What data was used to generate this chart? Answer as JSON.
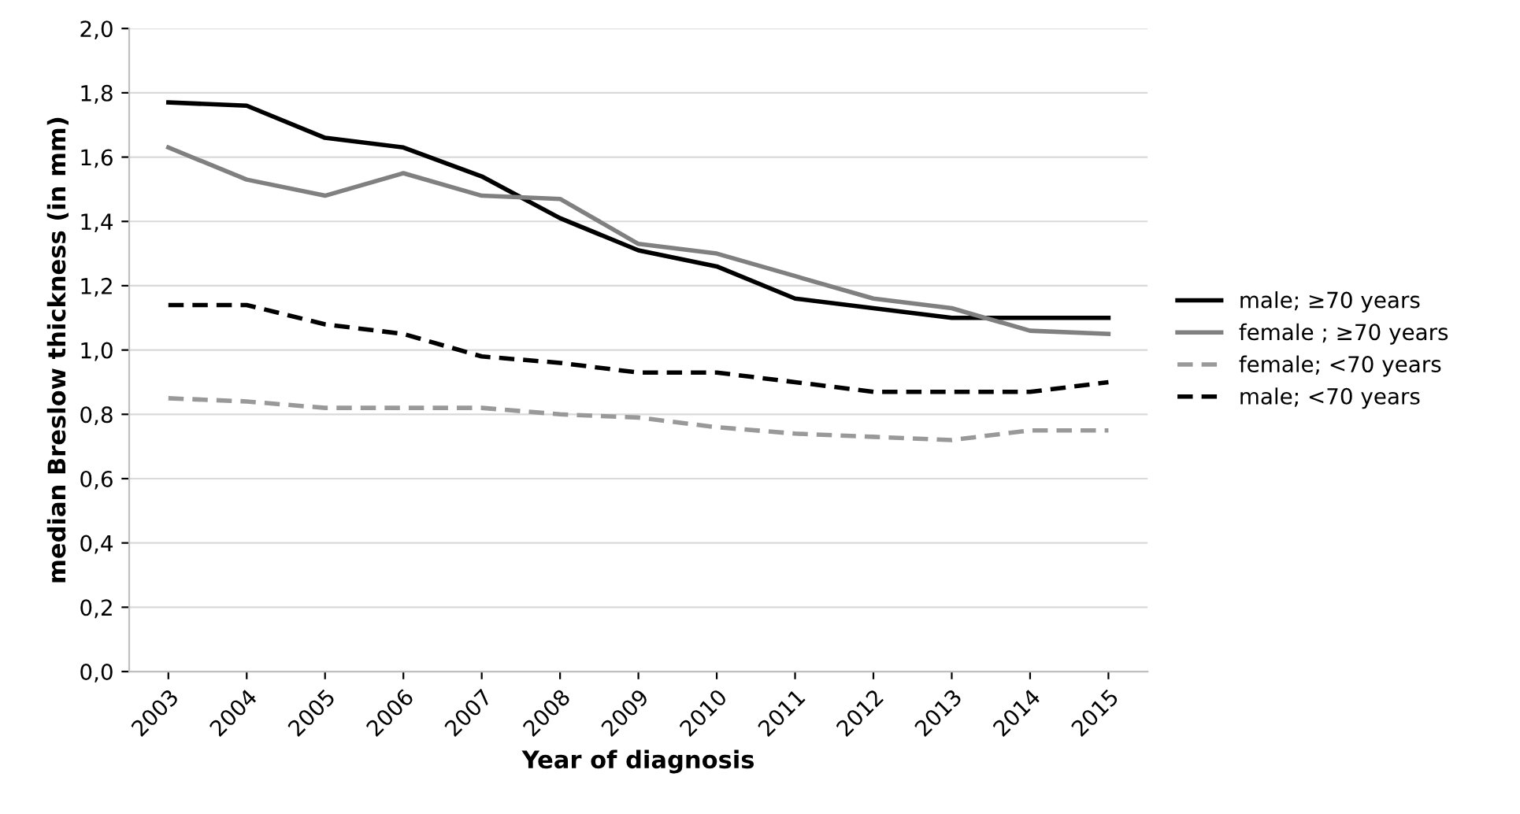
{
  "chart_data": {
    "type": "line",
    "xlabel": "Year of diagnosis",
    "ylabel": "median Breslow thickness (in mm)",
    "categories": [
      "2003",
      "2004",
      "2005",
      "2006",
      "2007",
      "2008",
      "2009",
      "2010",
      "2011",
      "2012",
      "2013",
      "2014",
      "2015"
    ],
    "series": [
      {
        "name": "male; ≥70 years",
        "color": "#000000",
        "line_style": "solid",
        "values": [
          1.77,
          1.76,
          1.66,
          1.63,
          1.54,
          1.41,
          1.31,
          1.26,
          1.16,
          1.13,
          1.1,
          1.1,
          1.1
        ]
      },
      {
        "name": "female ; ≥70 years",
        "color": "#808080",
        "line_style": "solid",
        "values": [
          1.63,
          1.53,
          1.48,
          1.55,
          1.48,
          1.47,
          1.33,
          1.3,
          1.23,
          1.16,
          1.13,
          1.06,
          1.05
        ]
      },
      {
        "name": "female; <70 years",
        "color": "#999999",
        "line_style": "dashed",
        "values": [
          0.85,
          0.84,
          0.82,
          0.82,
          0.82,
          0.8,
          0.79,
          0.76,
          0.74,
          0.73,
          0.72,
          0.75,
          0.75
        ]
      },
      {
        "name": "male; <70 years",
        "color": "#000000",
        "line_style": "dashed",
        "values": [
          1.14,
          1.14,
          1.08,
          1.05,
          0.98,
          0.96,
          0.93,
          0.93,
          0.9,
          0.87,
          0.87,
          0.87,
          0.9
        ]
      }
    ],
    "ylim": [
      0,
      2
    ],
    "yticks": [
      {
        "value": 0,
        "label": "0,0"
      },
      {
        "value": 0.2,
        "label": "0,2"
      },
      {
        "value": 0.4,
        "label": "0,4"
      },
      {
        "value": 0.6,
        "label": "0,6"
      },
      {
        "value": 0.8,
        "label": "0,8"
      },
      {
        "value": 1.0,
        "label": "1,0"
      },
      {
        "value": 1.2,
        "label": "1,2"
      },
      {
        "value": 1.4,
        "label": "1,4"
      },
      {
        "value": 1.6,
        "label": "1,6"
      },
      {
        "value": 1.8,
        "label": "1,8"
      },
      {
        "value": 2.0,
        "label": "2,0"
      }
    ],
    "grid": "y",
    "legend": "right",
    "marker": "none"
  }
}
